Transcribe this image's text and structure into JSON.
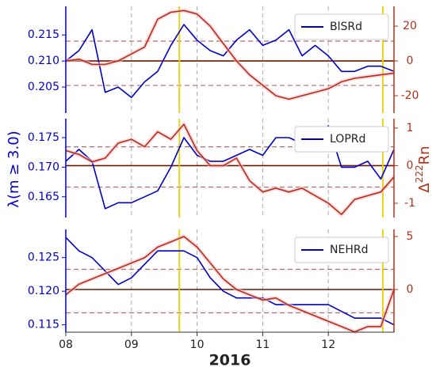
{
  "chart_data": [
    {
      "type": "line",
      "x": [
        8.0,
        8.2,
        8.4,
        8.6,
        8.8,
        9.0,
        9.2,
        9.4,
        9.6,
        9.8,
        10.0,
        10.2,
        10.4,
        10.6,
        10.8,
        11.0,
        11.2,
        11.4,
        11.6,
        11.8,
        12.0,
        12.2,
        12.4,
        12.6,
        12.8,
        13.0
      ],
      "series": [
        {
          "name": "BlSRd",
          "color": "#0000cc",
          "axis": "y",
          "values": [
            0.21,
            0.212,
            0.216,
            0.204,
            0.205,
            0.203,
            0.206,
            0.208,
            0.213,
            0.217,
            0.214,
            0.212,
            0.211,
            0.214,
            0.216,
            0.213,
            0.214,
            0.216,
            0.211,
            0.213,
            0.211,
            0.208,
            0.208,
            0.209,
            0.209,
            0.208
          ]
        },
        {
          "color": "#b0301a",
          "axis": "y2",
          "values": [
            0,
            1,
            -2,
            -2,
            0,
            4,
            8,
            24,
            28,
            29,
            27,
            20,
            10,
            0,
            -8,
            -14,
            -20,
            -22,
            -20,
            -18,
            -16,
            -12,
            -10,
            -9,
            -8,
            -7
          ]
        }
      ],
      "xlim": [
        8,
        13
      ],
      "xticks": [
        8,
        9,
        10,
        11,
        12
      ],
      "ylim": [
        0.2,
        0.2205
      ],
      "yticks": [
        0.205,
        {
          "value": 0.21,
          "label": "0.210"
        },
        0.215
      ],
      "y2lim": [
        -30,
        31.4
      ],
      "y2ticks": [
        -20,
        0,
        20
      ],
      "hlines": [
        {
          "axis": "y2",
          "value": 0,
          "style": "solid"
        },
        {
          "axis": "y2",
          "value": 11.4,
          "style": "dashed"
        },
        {
          "axis": "y2",
          "value": -14.1,
          "style": "dashed"
        }
      ],
      "vlines": [
        9.73,
        12.83
      ],
      "vline_color": "#e6d200",
      "legend": "upper right"
    },
    {
      "type": "line",
      "x": [
        8.0,
        8.2,
        8.4,
        8.6,
        8.8,
        9.0,
        9.2,
        9.4,
        9.6,
        9.8,
        10.0,
        10.2,
        10.4,
        10.6,
        10.8,
        11.0,
        11.2,
        11.4,
        11.6,
        11.8,
        12.0,
        12.2,
        12.4,
        12.6,
        12.8,
        13.0
      ],
      "series": [
        {
          "name": "LOPRd",
          "color": "#0000cc",
          "axis": "y",
          "values": [
            0.171,
            0.173,
            0.171,
            0.163,
            0.164,
            0.164,
            0.165,
            0.166,
            0.17,
            0.175,
            0.172,
            0.171,
            0.171,
            0.172,
            0.173,
            0.172,
            0.175,
            0.175,
            0.174,
            0.174,
            0.177,
            0.17,
            0.17,
            0.171,
            0.168,
            0.173
          ]
        },
        {
          "color": "#b0301a",
          "axis": "y2",
          "values": [
            0.4,
            0.3,
            0.1,
            0.2,
            0.6,
            0.7,
            0.5,
            0.9,
            0.7,
            1.1,
            0.4,
            0.0,
            0.0,
            0.2,
            -0.4,
            -0.7,
            -0.6,
            -0.7,
            -0.6,
            -0.8,
            -1.0,
            -1.3,
            -0.9,
            -0.8,
            -0.7,
            -0.3
          ]
        }
      ],
      "xlim": [
        8,
        13
      ],
      "xticks": [
        8,
        9,
        10,
        11,
        12
      ],
      "ylim": [
        0.1615,
        0.1782
      ],
      "yticks": [
        0.165,
        {
          "value": 0.17,
          "label": "0.170"
        },
        0.175
      ],
      "y2lim": [
        -1.38,
        1.25
      ],
      "y2ticks": [
        -1,
        0,
        1
      ],
      "hlines": [
        {
          "axis": "y2",
          "value": 0,
          "style": "solid"
        },
        {
          "axis": "y2",
          "value": 0.5,
          "style": "dashed"
        },
        {
          "axis": "y2",
          "value": -0.57,
          "style": "dashed"
        }
      ],
      "vlines": [
        9.73,
        12.83
      ],
      "vline_color": "#e6d200",
      "legend": "upper right",
      "y_label": "λ(m ≥ 3.0)",
      "y2_label_symbol": "Δ",
      "y2_label_sup": "222",
      "y2_label_base": "Rn"
    },
    {
      "type": "line",
      "x": [
        8.0,
        8.2,
        8.4,
        8.6,
        8.8,
        9.0,
        9.2,
        9.4,
        9.6,
        9.8,
        10.0,
        10.2,
        10.4,
        10.6,
        10.8,
        11.0,
        11.2,
        11.4,
        11.6,
        11.8,
        12.0,
        12.2,
        12.4,
        12.6,
        12.8,
        13.0
      ],
      "series": [
        {
          "name": "NEHRd",
          "color": "#0000cc",
          "axis": "y",
          "values": [
            0.128,
            0.126,
            0.125,
            0.123,
            0.121,
            0.122,
            0.124,
            0.126,
            0.126,
            0.126,
            0.125,
            0.122,
            0.12,
            0.119,
            0.119,
            0.119,
            0.118,
            0.118,
            0.118,
            0.118,
            0.118,
            0.117,
            0.116,
            0.116,
            0.116,
            0.115
          ]
        },
        {
          "color": "#b0301a",
          "axis": "y2",
          "values": [
            -0.5,
            0.5,
            1.0,
            1.5,
            2.0,
            2.5,
            3.0,
            4.0,
            4.5,
            5.0,
            4.0,
            2.5,
            1.0,
            0.0,
            -0.5,
            -1.0,
            -0.8,
            -1.5,
            -2.0,
            -2.5,
            -3.0,
            -3.5,
            -4.0,
            -3.5,
            -3.5,
            0.0
          ]
        }
      ],
      "xlim": [
        8,
        13
      ],
      "xticks": [
        {
          "value": 8,
          "label": "08"
        },
        {
          "value": 9,
          "label": "09"
        },
        10,
        11,
        12
      ],
      "ylim": [
        0.1139,
        0.1292
      ],
      "yticks": [
        0.115,
        {
          "value": 0.12,
          "label": "0.120"
        },
        0.125
      ],
      "y2lim": [
        -4.03,
        5.67
      ],
      "y2ticks": [
        0,
        5
      ],
      "hlines": [
        {
          "axis": "y2",
          "value": 0,
          "style": "solid"
        },
        {
          "axis": "y2",
          "value": 1.9,
          "style": "dashed"
        },
        {
          "axis": "y2",
          "value": -2.2,
          "style": "dashed"
        }
      ],
      "vlines": [
        9.73,
        12.83
      ],
      "vline_color": "#e6d200",
      "legend": "upper right",
      "x_label": "2016"
    }
  ]
}
